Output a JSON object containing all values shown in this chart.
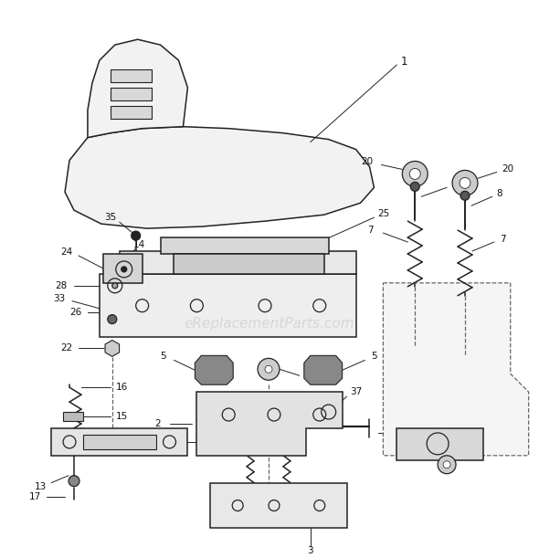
{
  "background_color": "#ffffff",
  "border_color": "#cccccc",
  "watermark_text": "eReplacementParts.com",
  "watermark_color": "#c8c8c8",
  "watermark_alpha": 0.6,
  "line_color": "#222222",
  "dashed_color": "#666666",
  "fill_light": "#f0f0f0",
  "fill_mid": "#e0e0e0",
  "fill_dark": "#c8c8c8"
}
